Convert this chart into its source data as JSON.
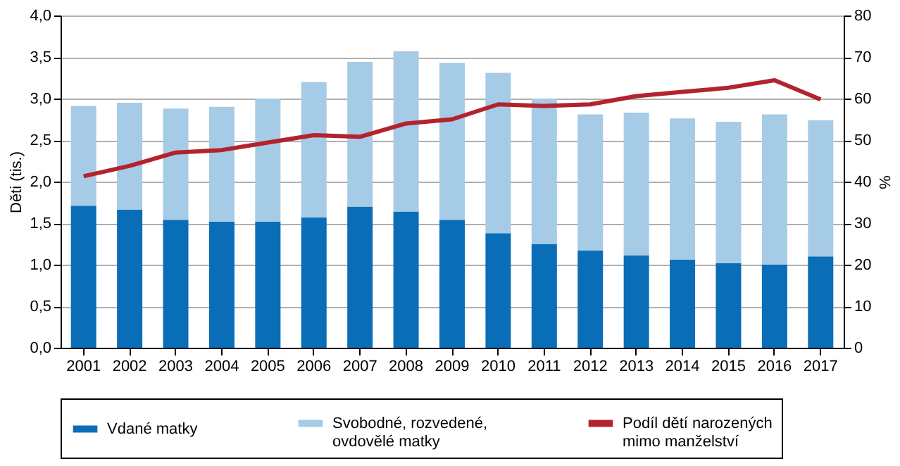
{
  "chart_data": {
    "type": "bar",
    "stacked": true,
    "ylabel": "Děti (tis.)",
    "y2label": "%",
    "categories": [
      "2001",
      "2002",
      "2003",
      "2004",
      "2005",
      "2006",
      "2007",
      "2008",
      "2009",
      "2010",
      "2011",
      "2012",
      "2013",
      "2014",
      "2015",
      "2016",
      "2017"
    ],
    "series": [
      {
        "name": "Vdané matky",
        "color": "#0a6db7",
        "values": [
          1.71,
          1.66,
          1.54,
          1.52,
          1.52,
          1.57,
          1.7,
          1.64,
          1.54,
          1.38,
          1.25,
          1.17,
          1.11,
          1.06,
          1.02,
          1.0,
          1.1
        ]
      },
      {
        "name": "Svobodné, rozvedené, ovdovělé matky",
        "color": "#a6cbe6",
        "values": [
          1.2,
          1.29,
          1.34,
          1.38,
          1.48,
          1.63,
          1.74,
          1.93,
          1.89,
          1.93,
          1.75,
          1.64,
          1.72,
          1.7,
          1.7,
          1.81,
          1.64
        ]
      },
      {
        "name": "Podíl dětí narozených mimo manželství",
        "color": "#b3232e",
        "type": "line",
        "axis": "y2",
        "values": [
          41.3,
          43.8,
          47.0,
          47.6,
          49.4,
          51.2,
          50.8,
          54.0,
          55.0,
          58.6,
          58.2,
          58.6,
          60.6,
          61.6,
          62.6,
          64.4,
          59.8
        ]
      }
    ],
    "ylim": [
      0,
      4
    ],
    "yticks": [
      {
        "value": 0,
        "label": "0,0"
      },
      {
        "value": 0.5,
        "label": "0,5"
      },
      {
        "value": 1,
        "label": "1,0"
      },
      {
        "value": 1.5,
        "label": "1,5"
      },
      {
        "value": 2,
        "label": "2,0"
      },
      {
        "value": 2.5,
        "label": "2,5"
      },
      {
        "value": 3,
        "label": "3,0"
      },
      {
        "value": 3.5,
        "label": "3,5"
      },
      {
        "value": 4,
        "label": "4,0"
      }
    ],
    "y2lim": [
      0,
      80
    ],
    "y2ticks": [
      0,
      10,
      20,
      30,
      40,
      50,
      60,
      70,
      80
    ],
    "grid": "y",
    "legend": "bottom",
    "marker": "none",
    "line_style": "solid"
  }
}
